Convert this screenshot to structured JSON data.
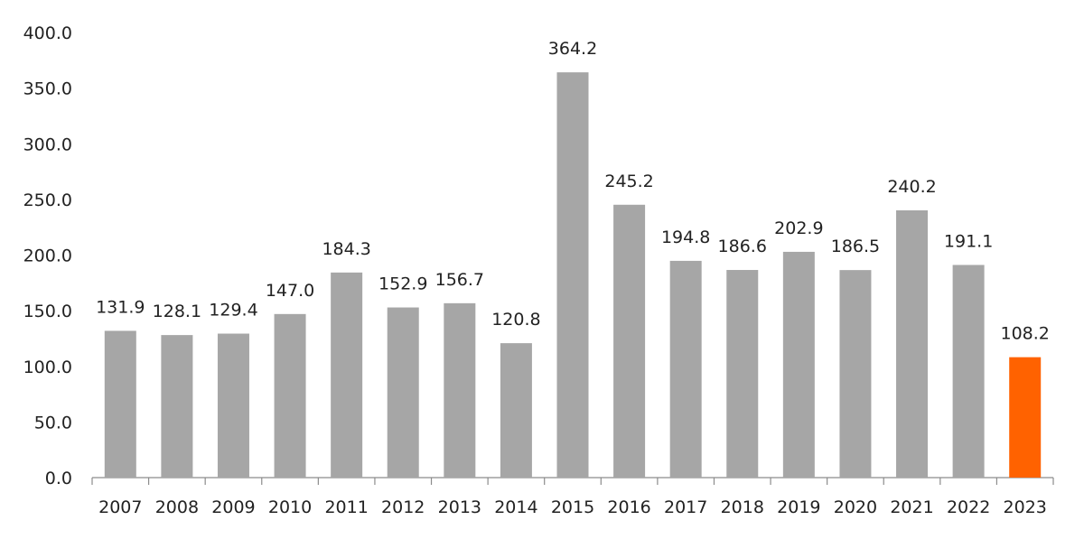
{
  "chart_data": {
    "type": "bar",
    "title": "",
    "xlabel": "",
    "ylabel": "",
    "ylim": [
      0,
      400
    ],
    "yticks": [
      "0.0",
      "50.0",
      "100.0",
      "150.0",
      "200.0",
      "250.0",
      "300.0",
      "350.0",
      "400.0"
    ],
    "grid": false,
    "legend": "none",
    "categories": [
      "2007",
      "2008",
      "2009",
      "2010",
      "2011",
      "2012",
      "2013",
      "2014",
      "2015",
      "2016",
      "2017",
      "2018",
      "2019",
      "2020",
      "2021",
      "2022",
      "2023"
    ],
    "values": [
      131.9,
      128.1,
      129.4,
      147.0,
      184.3,
      152.9,
      156.7,
      120.8,
      364.2,
      245.2,
      194.8,
      186.6,
      202.9,
      186.5,
      240.2,
      191.1,
      108.2
    ],
    "value_labels": [
      "131.9",
      "128.1",
      "129.4",
      "147.0",
      "184.3",
      "152.9",
      "156.7",
      "120.8",
      "364.2",
      "245.2",
      "194.8",
      "186.6",
      "202.9",
      "186.5",
      "240.2",
      "191.1",
      "108.2"
    ],
    "colors": {
      "default_bar": "#a6a6a6",
      "highlight_bar": "#ff6200",
      "highlight_category": "2023"
    }
  }
}
